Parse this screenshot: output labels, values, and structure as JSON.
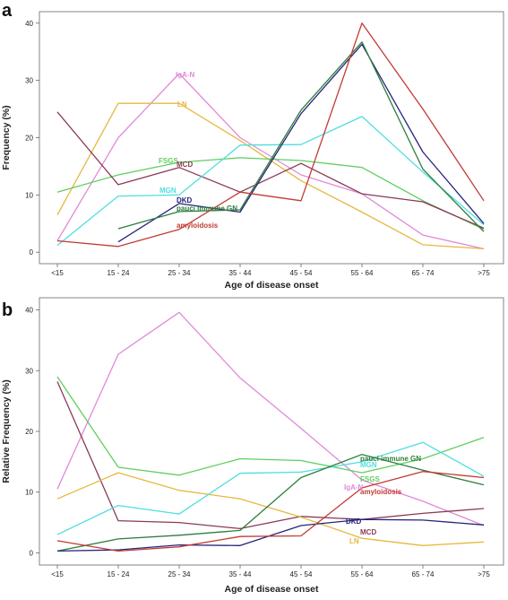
{
  "chart_data": [
    {
      "type": "line",
      "panel": "a",
      "ylabel": "Frequency (%)",
      "xlabel": "Age of disease onset",
      "categories": [
        "<15",
        "15 - 24",
        "25 - 34",
        "35 - 44",
        "45 - 54",
        "55 - 64",
        "65 - 74",
        ">75"
      ],
      "ylim": [
        -2,
        42
      ],
      "yticks": [
        0,
        10,
        20,
        30,
        40
      ],
      "grid": false,
      "series": [
        {
          "name": "IgA-N",
          "color": "#e08ad8",
          "values": [
            2,
            20,
            31.2,
            20,
            13.5,
            10.2,
            3,
            0.6
          ]
        },
        {
          "name": "LN",
          "color": "#e6b840",
          "values": [
            6.5,
            26,
            26,
            19.5,
            12.5,
            7,
            1.3,
            0.6
          ]
        },
        {
          "name": "FSGS",
          "color": "#5ecf5e",
          "values": [
            10.5,
            13.5,
            15.7,
            16.5,
            16,
            14.8,
            9,
            4
          ]
        },
        {
          "name": "MCD",
          "color": "#8a3a55",
          "values": [
            24.5,
            11.8,
            14.8,
            10.5,
            15.5,
            10.2,
            8.8,
            4.2
          ]
        },
        {
          "name": "MGN",
          "color": "#4fdede",
          "values": [
            1.2,
            9.8,
            10,
            18.7,
            18.8,
            23.7,
            14,
            4.8
          ]
        },
        {
          "name": "DKD",
          "color": "#26247a",
          "values": [
            null,
            1.8,
            8.5,
            7,
            24.2,
            36.3,
            17.5,
            5
          ]
        },
        {
          "name": "pauci immune GN",
          "color": "#2e7d3c",
          "values": [
            null,
            4.1,
            7.1,
            7.4,
            24.8,
            36.7,
            14.5,
            3.6
          ]
        },
        {
          "name": "amyloidosis",
          "color": "#c23a34",
          "values": [
            2,
            1,
            4,
            10.5,
            9,
            40,
            25,
            9
          ]
        }
      ],
      "labels": [
        {
          "name": "IgA-N",
          "color": "#e08ad8"
        },
        {
          "name": "LN",
          "color": "#e6b840"
        },
        {
          "name": "FSGS",
          "color": "#5ecf5e"
        },
        {
          "name": "MCD",
          "color": "#8a3a55"
        },
        {
          "name": "MGN",
          "color": "#4fdede"
        },
        {
          "name": "DKD",
          "color": "#26247a"
        },
        {
          "name": "pauci immune GN",
          "color": "#2e7d3c"
        },
        {
          "name": "amyloidosis",
          "color": "#c23a34"
        }
      ]
    },
    {
      "type": "line",
      "panel": "b",
      "ylabel": "Relative Frequency (%)",
      "xlabel": "Age of disease onset",
      "categories": [
        "<15",
        "15 - 24",
        "25 - 34",
        "35 - 44",
        "45 - 54",
        "55 - 64",
        "65 - 74",
        ">75"
      ],
      "ylim": [
        -2,
        42
      ],
      "yticks": [
        0,
        10,
        20,
        30,
        40
      ],
      "grid": false,
      "series": [
        {
          "name": "IgA-N",
          "color": "#e08ad8",
          "values": [
            10.5,
            32.7,
            39.6,
            28.8,
            20.5,
            12,
            8.5,
            4.5
          ]
        },
        {
          "name": "FSGS",
          "color": "#5ecf5e",
          "values": [
            29,
            14.1,
            12.8,
            15.5,
            15.2,
            13.2,
            15.5,
            19
          ]
        },
        {
          "name": "MCD",
          "color": "#8a3a55",
          "values": [
            28.2,
            5.3,
            5,
            4,
            6,
            5.5,
            6.5,
            7.3
          ]
        },
        {
          "name": "LN",
          "color": "#e6b840",
          "values": [
            8.9,
            13.2,
            10.3,
            8.9,
            5.9,
            2.4,
            1.2,
            1.8
          ]
        },
        {
          "name": "MGN",
          "color": "#4fdede",
          "values": [
            3,
            7.8,
            6.4,
            13.1,
            13.3,
            15,
            18.2,
            12.6
          ]
        },
        {
          "name": "pauci immune GN",
          "color": "#2e7d3c",
          "values": [
            0.3,
            2.3,
            2.9,
            3.7,
            12.4,
            16.2,
            13.6,
            11.2
          ]
        },
        {
          "name": "DKD",
          "color": "#26247a",
          "values": [
            0.3,
            0.5,
            1.3,
            1.2,
            4.5,
            5.5,
            5.4,
            4.6
          ]
        },
        {
          "name": "amyloidosis",
          "color": "#c23a34",
          "values": [
            2,
            0.3,
            1,
            2.7,
            2.8,
            10.7,
            13.4,
            12.4
          ]
        }
      ],
      "labels": [
        {
          "name": "pauci immune GN",
          "color": "#2e7d3c"
        },
        {
          "name": "MGN",
          "color": "#4fdede"
        },
        {
          "name": "FSGS",
          "color": "#5ecf5e"
        },
        {
          "name": "IgA-N",
          "color": "#e08ad8"
        },
        {
          "name": "amyloidosis",
          "color": "#c23a34"
        },
        {
          "name": "DKD",
          "color": "#26247a"
        },
        {
          "name": "MCD",
          "color": "#8a3a55"
        },
        {
          "name": "LN",
          "color": "#e6b840"
        }
      ]
    }
  ]
}
